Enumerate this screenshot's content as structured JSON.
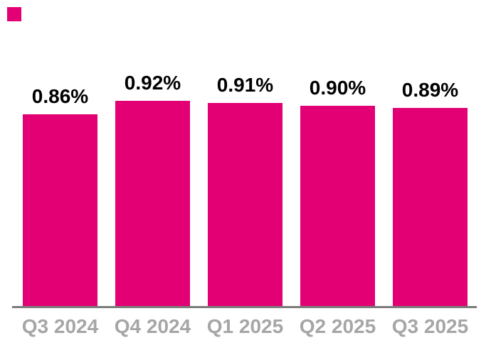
{
  "brand": {
    "accent_color": "#E20074"
  },
  "chart_data": {
    "type": "bar",
    "title": "",
    "xlabel": "",
    "ylabel": "",
    "unit": "%",
    "categories": [
      "Q3 2024",
      "Q4 2024",
      "Q1 2025",
      "Q2 2025",
      "Q3 2025"
    ],
    "values": [
      0.86,
      0.92,
      0.91,
      0.9,
      0.89
    ],
    "value_labels": [
      "0.86%",
      "0.92%",
      "0.91%",
      "0.90%",
      "0.89%"
    ],
    "ylim": [
      0,
      1.0
    ],
    "grid": false,
    "legend": "none",
    "y_axis_visible": false,
    "x_axis_line_visible": true,
    "bar_color": "#E20074",
    "value_label_color": "#000000",
    "category_label_color": "#A6A6A6",
    "axis_line_color": "#7C7C7C",
    "background_color": "#FFFFFF"
  }
}
